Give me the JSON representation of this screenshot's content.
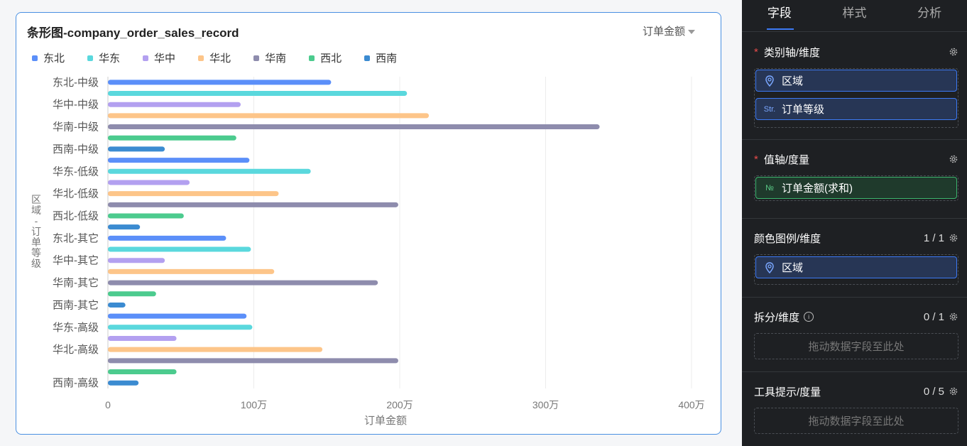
{
  "card": {
    "title": "条形图-company_order_sales_record",
    "metric_select": "订单金额"
  },
  "chart_data": {
    "type": "bar",
    "orientation": "horizontal",
    "grouped": true,
    "title": "条形图-company_order_sales_record",
    "xlabel": "订单金额",
    "ylabel": "区域-订单等级",
    "xlim": [
      0,
      4000000
    ],
    "x_ticks": [
      "0",
      "100万",
      "200万",
      "300万",
      "400万"
    ],
    "grid": true,
    "legend": [
      "东北",
      "华东",
      "华中",
      "华北",
      "华南",
      "西北",
      "西南"
    ],
    "legend_position": "top-left",
    "colors": {
      "东北": "#5b8ff9",
      "华东": "#5ad8dd",
      "华中": "#b3a0f0",
      "华北": "#fdc589",
      "华南": "#8e8cad",
      "西北": "#4ccb8e",
      "西南": "#3b8bd1"
    },
    "y_tick_labels": [
      "东北-中级",
      "华中-中级",
      "华南-中级",
      "西南-中级",
      "华东-低级",
      "华北-低级",
      "西北-低级",
      "东北-其它",
      "华中-其它",
      "华南-其它",
      "西南-其它",
      "华东-高级",
      "华北-高级",
      "西南-高级"
    ],
    "bars": [
      {
        "label": "东北-中级",
        "series": "东北",
        "value": 1530000
      },
      {
        "label": "华东-中级",
        "series": "华东",
        "value": 2050000
      },
      {
        "label": "华中-中级",
        "series": "华中",
        "value": 910000
      },
      {
        "label": "华北-中级",
        "series": "华北",
        "value": 2200000
      },
      {
        "label": "华南-中级",
        "series": "华南",
        "value": 3370000
      },
      {
        "label": "西北-中级",
        "series": "西北",
        "value": 880000
      },
      {
        "label": "西南-中级",
        "series": "西南",
        "value": 390000
      },
      {
        "label": "东北-低级",
        "series": "东北",
        "value": 970000
      },
      {
        "label": "华东-低级",
        "series": "华东",
        "value": 1390000
      },
      {
        "label": "华中-低级",
        "series": "华中",
        "value": 560000
      },
      {
        "label": "华北-低级",
        "series": "华北",
        "value": 1170000
      },
      {
        "label": "华南-低级",
        "series": "华南",
        "value": 1990000
      },
      {
        "label": "西北-低级",
        "series": "西北",
        "value": 520000
      },
      {
        "label": "西南-低级",
        "series": "西南",
        "value": 220000
      },
      {
        "label": "东北-其它",
        "series": "东北",
        "value": 810000
      },
      {
        "label": "华东-其它",
        "series": "华东",
        "value": 980000
      },
      {
        "label": "华中-其它",
        "series": "华中",
        "value": 390000
      },
      {
        "label": "华北-其它",
        "series": "华北",
        "value": 1140000
      },
      {
        "label": "华南-其它",
        "series": "华南",
        "value": 1850000
      },
      {
        "label": "西北-其它",
        "series": "西北",
        "value": 330000
      },
      {
        "label": "西南-其它",
        "series": "西南",
        "value": 120000
      },
      {
        "label": "东北-高级",
        "series": "东北",
        "value": 950000
      },
      {
        "label": "华东-高级",
        "series": "华东",
        "value": 990000
      },
      {
        "label": "华中-高级",
        "series": "华中",
        "value": 470000
      },
      {
        "label": "华北-高级",
        "series": "华北",
        "value": 1470000
      },
      {
        "label": "华南-高级",
        "series": "华南",
        "value": 1990000
      },
      {
        "label": "西北-高级",
        "series": "西北",
        "value": 470000
      },
      {
        "label": "西南-高级",
        "series": "西南",
        "value": 210000
      }
    ]
  },
  "panel": {
    "tabs": [
      "字段",
      "样式",
      "分析"
    ],
    "active_tab": "字段",
    "category_axis": {
      "label": "类别轴/维度",
      "fields": [
        {
          "icon": "location-icon",
          "name": "区域"
        },
        {
          "icon": "string-type-icon",
          "icon_text": "Str.",
          "name": "订单等级"
        }
      ]
    },
    "value_axis": {
      "label": "值轴/度量",
      "fields": [
        {
          "icon": "number-type-icon",
          "icon_text": "№",
          "name": "订单金额(求和)"
        }
      ]
    },
    "color_legend": {
      "label": "颜色图例/维度",
      "count": "1 / 1",
      "fields": [
        {
          "icon": "location-icon",
          "name": "区域"
        }
      ]
    },
    "split": {
      "label": "拆分/维度",
      "count": "0 / 1",
      "placeholder": "拖动数据字段至此处"
    },
    "tooltip": {
      "label": "工具提示/度量",
      "count": "0 / 5",
      "placeholder": "拖动数据字段至此处"
    }
  }
}
